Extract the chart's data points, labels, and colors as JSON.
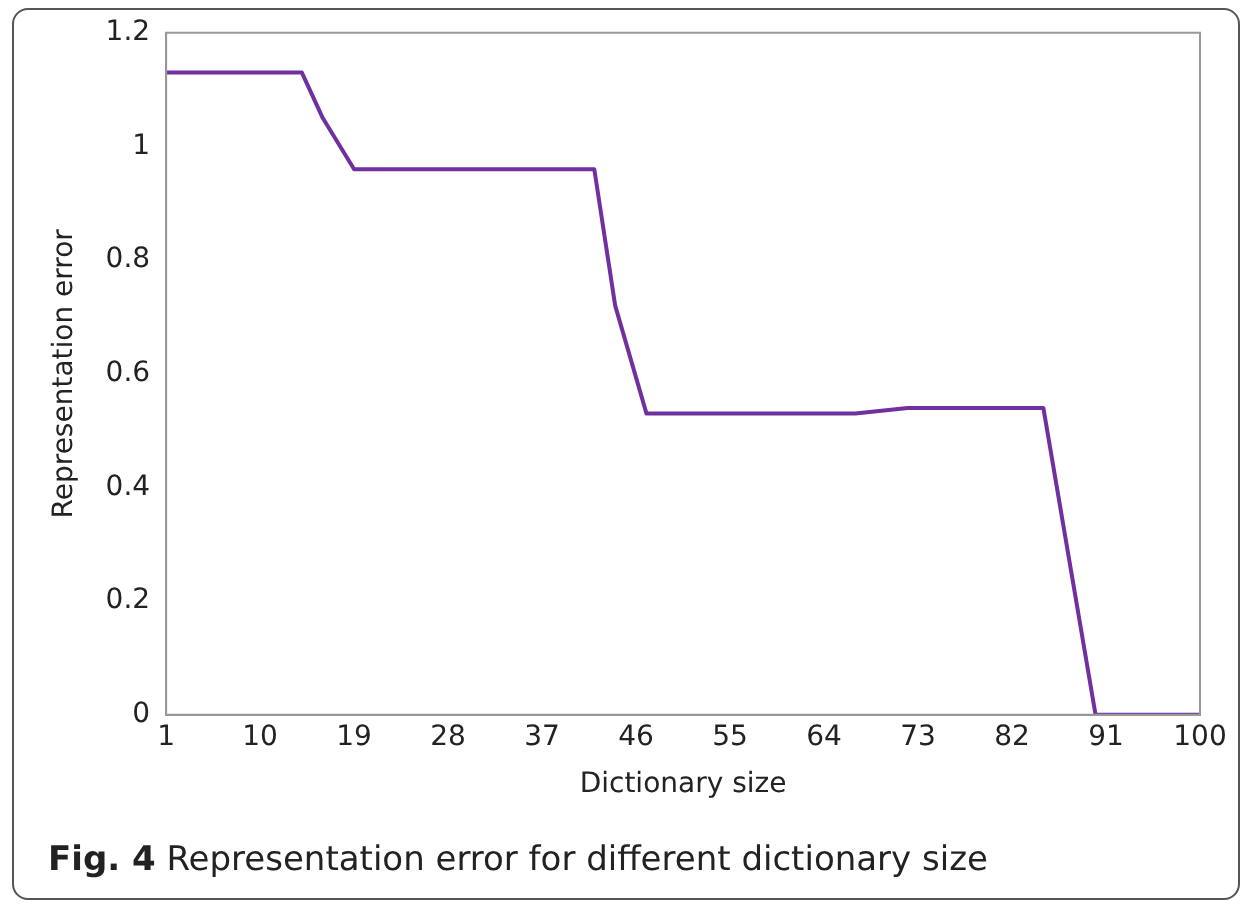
{
  "chart_data": {
    "type": "line",
    "xlabel": "Dictionary size",
    "ylabel": "Representation error",
    "annotations": [
      "Fig. 4 Representation error for different dictionary size"
    ],
    "x": [
      1,
      14,
      16,
      19,
      42,
      44,
      47,
      67,
      72,
      85,
      90,
      100
    ],
    "series": [
      {
        "color": "#7030a0",
        "values": [
          1.13,
          1.13,
          1.05,
          0.96,
          0.96,
          0.72,
          0.53,
          0.53,
          0.54,
          0.54,
          0,
          0
        ]
      }
    ],
    "xlim": [
      1,
      100
    ],
    "xticks": [
      1,
      10,
      19,
      28,
      37,
      46,
      55,
      64,
      73,
      82,
      91,
      100
    ],
    "ylim": [
      0,
      1.2
    ],
    "yticks": [
      0,
      0.2,
      0.4,
      0.6,
      0.8,
      1,
      1.2
    ],
    "grid": false,
    "legend": false,
    "marker": "none",
    "line_style": "solid"
  }
}
